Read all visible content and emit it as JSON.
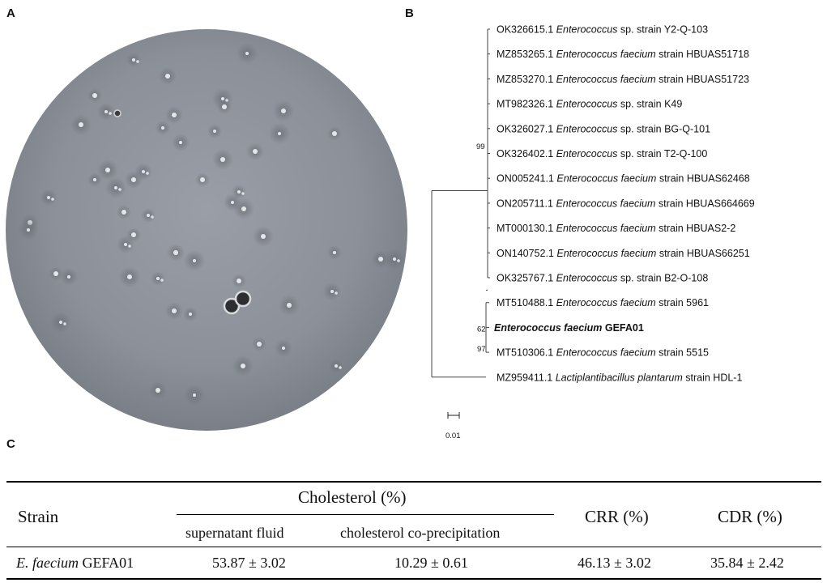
{
  "panels": {
    "a": "A",
    "b": "B",
    "c": "C"
  },
  "tree": {
    "taxa": [
      {
        "accession": "OK326615.1",
        "genus": "Enterococcus",
        "epithet": "sp.",
        "epithet_italic": false,
        "strain": "strain Y2-Q-103"
      },
      {
        "accession": "MZ853265.1",
        "genus": "Enterococcus",
        "epithet": "faecium",
        "epithet_italic": true,
        "strain": "strain HBUAS51718"
      },
      {
        "accession": "MZ853270.1",
        "genus": "Enterococcus",
        "epithet": "faecium",
        "epithet_italic": true,
        "strain": "strain HBUAS51723"
      },
      {
        "accession": "MT982326.1",
        "genus": "Enterococcus",
        "epithet": "sp.",
        "epithet_italic": false,
        "strain": "strain K49"
      },
      {
        "accession": "OK326027.1",
        "genus": "Enterococcus",
        "epithet": "sp.",
        "epithet_italic": false,
        "strain": "strain BG-Q-101"
      },
      {
        "accession": "OK326402.1",
        "genus": "Enterococcus",
        "epithet": "sp.",
        "epithet_italic": false,
        "strain": "strain T2-Q-100"
      },
      {
        "accession": "ON005241.1",
        "genus": "Enterococcus",
        "epithet": "faecium",
        "epithet_italic": true,
        "strain": "strain HBUAS62468"
      },
      {
        "accession": "ON205711.1",
        "genus": "Enterococcus",
        "epithet": "faecium",
        "epithet_italic": true,
        "strain": "strain HBUAS664669"
      },
      {
        "accession": "MT000130.1",
        "genus": "Enterococcus",
        "epithet": "faecium",
        "epithet_italic": true,
        "strain": "strain HBUAS2-2"
      },
      {
        "accession": "ON140752.1",
        "genus": "Enterococcus",
        "epithet": "faecium",
        "epithet_italic": true,
        "strain": "strain HBUAS66251"
      },
      {
        "accession": "OK325767.1",
        "genus": "Enterococcus",
        "epithet": "sp.",
        "epithet_italic": false,
        "strain": "strain B2-O-108"
      },
      {
        "accession": "MT510488.1",
        "genus": "Enterococcus",
        "epithet": "faecium",
        "epithet_italic": true,
        "strain": "strain 5961"
      },
      {
        "accession": "",
        "genus": "Enterococcus faecium",
        "epithet": "GEFA01",
        "epithet_italic": false,
        "strain": "",
        "bold": true
      },
      {
        "accession": "MT510306.1",
        "genus": "Enterococcus",
        "epithet": "faecium",
        "epithet_italic": true,
        "strain": "strain 5515"
      },
      {
        "accession": "MZ959411.1",
        "genus": "Lactiplantibacillus",
        "epithet": "plantarum",
        "epithet_italic": true,
        "strain": "strain HDL-1"
      }
    ],
    "bootstrap": [
      "99",
      "62",
      "97"
    ],
    "scale_label": "0.01"
  },
  "table": {
    "header": {
      "strain": "Strain",
      "cholesterol_group": "Cholesterol (%)",
      "supernatant": "supernatant fluid",
      "coprecipitation": "cholesterol co-precipitation",
      "crr": "CRR (%)",
      "cdr": "CDR (%)"
    },
    "rows": [
      {
        "strain_italic": "E. faecium",
        "strain_rest": " GEFA01",
        "supernatant": "53.87 ± 3.02",
        "coprecipitation": "10.29 ± 0.61",
        "crr": "46.13 ± 3.02",
        "cdr": "35.84 ± 2.42"
      }
    ]
  }
}
